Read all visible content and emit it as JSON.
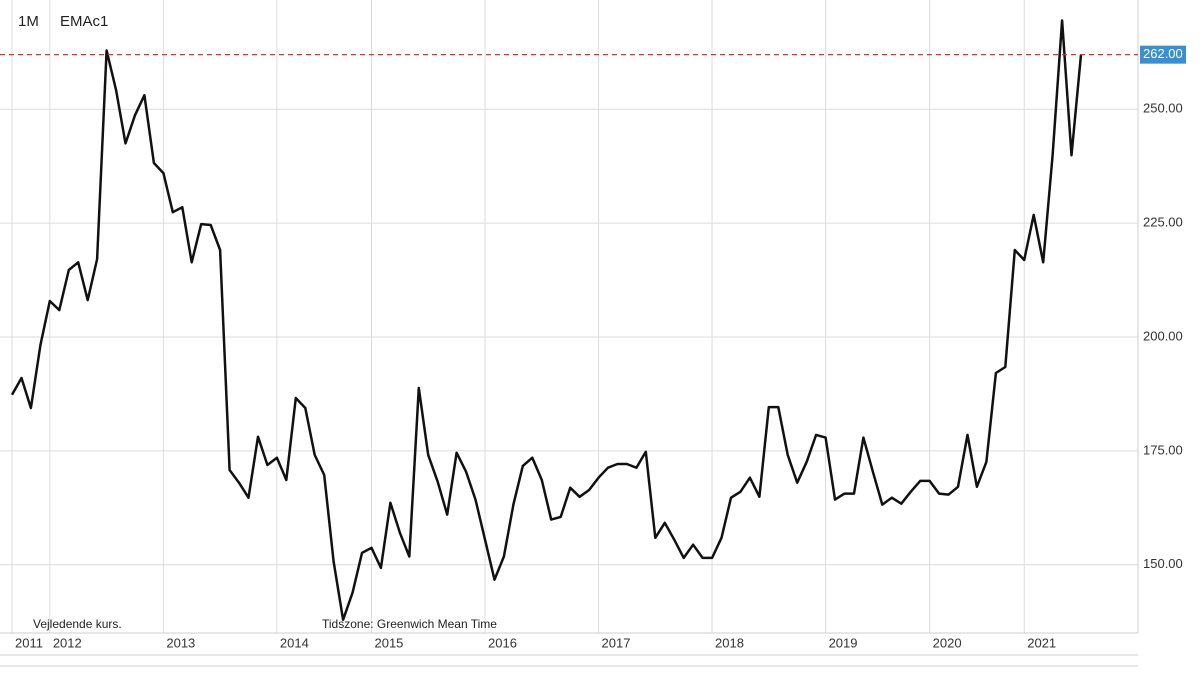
{
  "chart_data": {
    "type": "line",
    "annotations": [
      "1M",
      "EMAc1",
      "Vejledende kurs.",
      "Tidszone: Greenwich Mean Time"
    ],
    "categories": [
      "2011",
      null,
      null,
      null,
      "2012",
      null,
      null,
      null,
      null,
      null,
      null,
      null,
      null,
      null,
      null,
      null,
      "2013",
      null,
      null,
      null,
      null,
      null,
      null,
      null,
      null,
      null,
      null,
      null,
      "2014",
      null,
      null,
      null,
      null,
      null,
      null,
      null,
      null,
      null,
      "2015",
      null,
      null,
      null,
      null,
      null,
      null,
      null,
      null,
      null,
      null,
      null,
      "2016",
      null,
      null,
      null,
      null,
      null,
      null,
      null,
      null,
      null,
      null,
      null,
      "2017",
      null,
      null,
      null,
      null,
      null,
      null,
      null,
      null,
      null,
      null,
      null,
      "2018",
      null,
      null,
      null,
      null,
      null,
      null,
      null,
      null,
      null,
      null,
      null,
      "2019",
      null,
      null,
      null,
      null,
      null,
      null,
      null,
      null,
      null,
      null,
      "2020",
      null,
      null,
      null,
      null,
      null,
      null,
      null,
      null,
      null,
      "2021",
      null,
      null,
      null,
      null,
      null,
      null
    ],
    "series": [
      {
        "name": "EMAc1",
        "color": "#111111",
        "values": [
          187.3,
          191,
          184.4,
          198.2,
          207.9,
          205.9,
          214.7,
          216.4,
          208.1,
          217.1,
          262.9,
          254.2,
          242.5,
          248.7,
          253.1,
          238.2,
          236,
          227.4,
          228.5,
          216.4,
          224.8,
          224.6,
          219.1,
          170.8,
          168,
          164.7,
          178.1,
          171.9,
          173.5,
          168.6,
          186.6,
          184.4,
          174.1,
          169.7,
          150.7,
          137.9,
          143.9,
          152.6,
          153.7,
          149.3,
          163.6,
          157,
          151.8,
          188.8,
          174.1,
          168.2,
          161,
          174.6,
          170.4,
          164.3,
          155.5,
          146.7,
          151.8,
          163.2,
          171.7,
          173.5,
          168.6,
          159.9,
          160.5,
          166.9,
          164.9,
          166.4,
          169.1,
          171.3,
          172.1,
          172.1,
          171.3,
          174.8,
          155.9,
          159.2,
          155.5,
          151.5,
          154.4,
          151.5,
          151.5,
          155.9,
          164.7,
          166,
          169.1,
          164.9,
          184.6,
          184.6,
          174.1,
          168,
          172.6,
          178.5,
          177.9,
          164.3,
          165.6,
          165.6,
          177.9,
          170.4,
          163.2,
          164.7,
          163.4,
          166,
          168.4,
          168.4,
          165.6,
          165.4,
          167.1,
          178.5,
          167.1,
          172.6,
          192.1,
          193.4,
          219.1,
          216.9,
          226.8,
          216.4,
          239.9,
          269.5,
          239.9,
          262
        ]
      }
    ],
    "ylim": [
      135,
      274
    ],
    "yticks": [
      {
        "value": 150,
        "label": "150.00"
      },
      {
        "value": 175,
        "label": "175.00"
      },
      {
        "value": 200,
        "label": "200.00"
      },
      {
        "value": 225,
        "label": "225.00"
      },
      {
        "value": 250,
        "label": "250.00"
      }
    ],
    "last_price": {
      "value": 262,
      "label": "262.00",
      "line_color": "#e03030",
      "box_color": "#3a8fd0"
    },
    "grid": true
  }
}
